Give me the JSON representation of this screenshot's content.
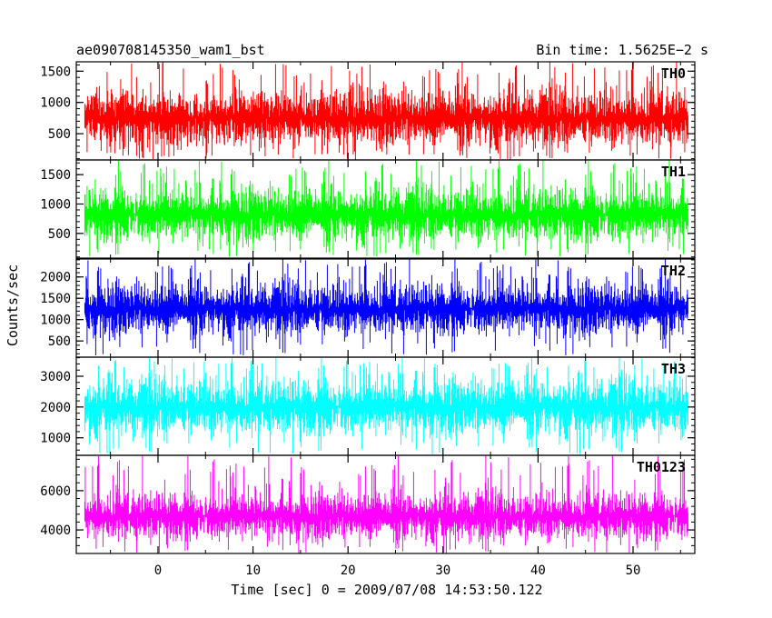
{
  "chart_data": {
    "type": "line",
    "title": "ae090708145350_wam1_bst",
    "subtitle": "Bin time: 1.5625E−2 s",
    "xlabel": "Time [sec] 0 = 2009/07/08 14:53:50.122",
    "ylabel": "Counts/sec",
    "xlim": [
      -8.6,
      56.5
    ],
    "x_range_data": [
      -7.7,
      55.8
    ],
    "x_ticks": [
      0,
      10,
      20,
      30,
      40,
      50
    ],
    "x_tick_labels": [
      "0",
      "10",
      "20",
      "30",
      "40",
      "50"
    ],
    "grid": false,
    "panels": [
      {
        "label": "TH0",
        "color": "#ff0000",
        "ylim": [
          80,
          1650
        ],
        "y_ticks": [
          500,
          1000,
          1500
        ],
        "y_tick_labels": [
          "500",
          "1000",
          "1500"
        ],
        "mean": 750,
        "band_low": 250,
        "band_high": 1250,
        "spike_max": 1650,
        "dip_min": 80
      },
      {
        "label": "TH1",
        "color": "#00ff00",
        "ylim": [
          80,
          1750
        ],
        "y_ticks": [
          500,
          1000,
          1500
        ],
        "y_tick_labels": [
          "500",
          "1000",
          "1500"
        ],
        "mean": 820,
        "band_low": 280,
        "band_high": 1300,
        "spike_max": 1750,
        "dip_min": 100
      },
      {
        "label": "TH2",
        "color": "#0000ff",
        "ylim": [
          120,
          2420
        ],
        "y_ticks": [
          500,
          1000,
          1500,
          2000
        ],
        "y_tick_labels": [
          "500",
          "1000",
          "1500",
          "2000"
        ],
        "mean": 1250,
        "band_low": 550,
        "band_high": 1900,
        "spike_max": 2420,
        "dip_min": 150
      },
      {
        "label": "TH3",
        "color": "#00ffff",
        "ylim": [
          430,
          3620
        ],
        "y_ticks": [
          1000,
          2000,
          3000
        ],
        "y_tick_labels": [
          "1000",
          "2000",
          "3000"
        ],
        "mean": 2000,
        "band_low": 1000,
        "band_high": 3000,
        "spike_max": 3620,
        "dip_min": 450
      },
      {
        "label": "TH0123",
        "color": "#ff00ff",
        "ylim": [
          2800,
          7800
        ],
        "y_ticks": [
          4000,
          6000
        ],
        "y_tick_labels": [
          "4000",
          "6000"
        ],
        "mean": 4700,
        "band_low": 3400,
        "band_high": 6100,
        "spike_max": 7800,
        "dip_min": 2800
      }
    ]
  }
}
